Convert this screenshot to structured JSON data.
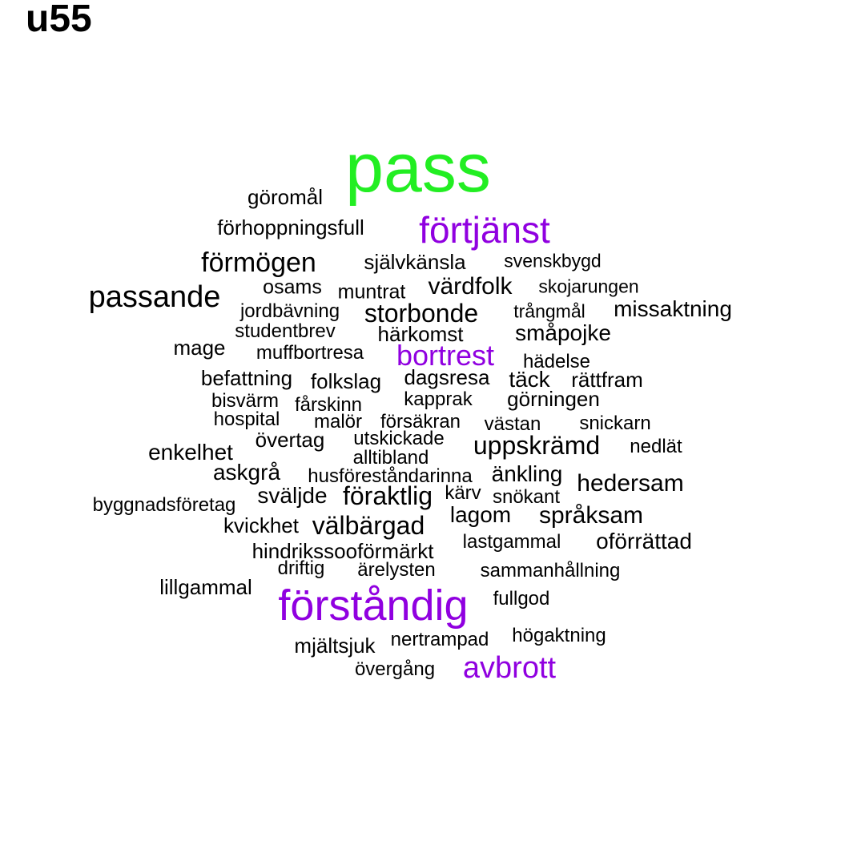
{
  "title": "u55",
  "colors": {
    "top": "#22ee22",
    "highlight": "#9000e0",
    "normal": "#000000"
  },
  "words": [
    {
      "text": "pass",
      "group": "top"
    },
    {
      "text": "förtjänst",
      "group": "highlight"
    },
    {
      "text": "förståndig",
      "group": "highlight"
    },
    {
      "text": "bortrest",
      "group": "highlight"
    },
    {
      "text": "avbrott",
      "group": "highlight"
    },
    {
      "text": "göromål",
      "group": "normal"
    },
    {
      "text": "förhoppningsfull",
      "group": "normal"
    },
    {
      "text": "förmögen",
      "group": "normal"
    },
    {
      "text": "självkänsla",
      "group": "normal"
    },
    {
      "text": "svenskbygd",
      "group": "normal"
    },
    {
      "text": "passande",
      "group": "normal"
    },
    {
      "text": "osams",
      "group": "normal"
    },
    {
      "text": "muntrat",
      "group": "normal"
    },
    {
      "text": "värdfolk",
      "group": "normal"
    },
    {
      "text": "skojarungen",
      "group": "normal"
    },
    {
      "text": "jordbävning",
      "group": "normal"
    },
    {
      "text": "storbonde",
      "group": "normal"
    },
    {
      "text": "trångmål",
      "group": "normal"
    },
    {
      "text": "missaktning",
      "group": "normal"
    },
    {
      "text": "studentbrev",
      "group": "normal"
    },
    {
      "text": "härkomst",
      "group": "normal"
    },
    {
      "text": "småpojke",
      "group": "normal"
    },
    {
      "text": "mage",
      "group": "normal"
    },
    {
      "text": "muffbortresa",
      "group": "normal"
    },
    {
      "text": "hädelse",
      "group": "normal"
    },
    {
      "text": "befattning",
      "group": "normal"
    },
    {
      "text": "folkslag",
      "group": "normal"
    },
    {
      "text": "dagsresa",
      "group": "normal"
    },
    {
      "text": "täck",
      "group": "normal"
    },
    {
      "text": "rättfram",
      "group": "normal"
    },
    {
      "text": "bisvärm",
      "group": "normal"
    },
    {
      "text": "fårskinn",
      "group": "normal"
    },
    {
      "text": "kapprak",
      "group": "normal"
    },
    {
      "text": "görningen",
      "group": "normal"
    },
    {
      "text": "hospital",
      "group": "normal"
    },
    {
      "text": "malör",
      "group": "normal"
    },
    {
      "text": "försäkran",
      "group": "normal"
    },
    {
      "text": "västan",
      "group": "normal"
    },
    {
      "text": "snickarn",
      "group": "normal"
    },
    {
      "text": "övertag",
      "group": "normal"
    },
    {
      "text": "utskickade",
      "group": "normal"
    },
    {
      "text": "uppskrämd",
      "group": "normal"
    },
    {
      "text": "nedlät",
      "group": "normal"
    },
    {
      "text": "enkelhet",
      "group": "normal"
    },
    {
      "text": "alltibland",
      "group": "normal"
    },
    {
      "text": "askgrå",
      "group": "normal"
    },
    {
      "text": "husföreståndarinna",
      "group": "normal"
    },
    {
      "text": "änkling",
      "group": "normal"
    },
    {
      "text": "hedersam",
      "group": "normal"
    },
    {
      "text": "byggnadsföretag",
      "group": "normal"
    },
    {
      "text": "sväljde",
      "group": "normal"
    },
    {
      "text": "föraktlig",
      "group": "normal"
    },
    {
      "text": "kärv",
      "group": "normal"
    },
    {
      "text": "snökant",
      "group": "normal"
    },
    {
      "text": "lagom",
      "group": "normal"
    },
    {
      "text": "språksam",
      "group": "normal"
    },
    {
      "text": "kvickhet",
      "group": "normal"
    },
    {
      "text": "välbärgad",
      "group": "normal"
    },
    {
      "text": "lastgammal",
      "group": "normal"
    },
    {
      "text": "oförrättad",
      "group": "normal"
    },
    {
      "text": "hindrikssooförmärkt",
      "group": "normal"
    },
    {
      "text": "driftig",
      "group": "normal"
    },
    {
      "text": "ärelysten",
      "group": "normal"
    },
    {
      "text": "sammanhållning",
      "group": "normal"
    },
    {
      "text": "lillgammal",
      "group": "normal"
    },
    {
      "text": "fullgod",
      "group": "normal"
    },
    {
      "text": "mjältsjuk",
      "group": "normal"
    },
    {
      "text": "nertrampad",
      "group": "normal"
    },
    {
      "text": "högaktning",
      "group": "normal"
    },
    {
      "text": "övergång",
      "group": "normal"
    }
  ]
}
